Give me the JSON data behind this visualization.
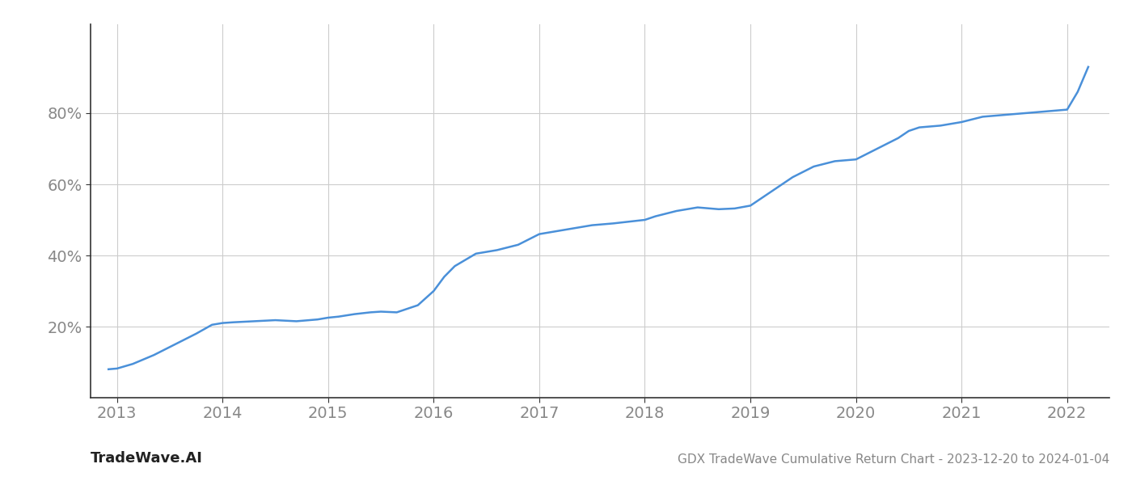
{
  "x_values": [
    2012.92,
    2013.0,
    2013.15,
    2013.35,
    2013.55,
    2013.75,
    2013.9,
    2014.0,
    2014.1,
    2014.3,
    2014.5,
    2014.7,
    2014.9,
    2015.0,
    2015.1,
    2015.25,
    2015.4,
    2015.5,
    2015.65,
    2015.85,
    2016.0,
    2016.1,
    2016.2,
    2016.4,
    2016.6,
    2016.8,
    2017.0,
    2017.2,
    2017.5,
    2017.7,
    2017.85,
    2018.0,
    2018.1,
    2018.3,
    2018.5,
    2018.7,
    2018.85,
    2019.0,
    2019.2,
    2019.4,
    2019.6,
    2019.8,
    2020.0,
    2020.2,
    2020.4,
    2020.5,
    2020.6,
    2020.8,
    2021.0,
    2021.2,
    2021.4,
    2021.6,
    2021.8,
    2022.0,
    2022.1,
    2022.2
  ],
  "y_values": [
    8.0,
    8.2,
    9.5,
    12.0,
    15.0,
    18.0,
    20.5,
    21.0,
    21.2,
    21.5,
    21.8,
    21.5,
    22.0,
    22.5,
    22.8,
    23.5,
    24.0,
    24.2,
    24.0,
    26.0,
    30.0,
    34.0,
    37.0,
    40.5,
    41.5,
    43.0,
    46.0,
    47.0,
    48.5,
    49.0,
    49.5,
    50.0,
    51.0,
    52.5,
    53.5,
    53.0,
    53.2,
    54.0,
    58.0,
    62.0,
    65.0,
    66.5,
    67.0,
    70.0,
    73.0,
    75.0,
    76.0,
    76.5,
    77.5,
    79.0,
    79.5,
    80.0,
    80.5,
    81.0,
    86.0,
    93.0
  ],
  "line_color": "#4a90d9",
  "line_width": 1.8,
  "title": "GDX TradeWave Cumulative Return Chart - 2023-12-20 to 2024-01-04",
  "watermark": "TradeWave.AI",
  "xlim": [
    2012.75,
    2022.4
  ],
  "ylim": [
    0,
    105
  ],
  "yticks": [
    20,
    40,
    60,
    80
  ],
  "xticks": [
    2013,
    2014,
    2015,
    2016,
    2017,
    2018,
    2019,
    2020,
    2021,
    2022
  ],
  "grid_color": "#cccccc",
  "bg_color": "#ffffff",
  "title_fontsize": 11,
  "watermark_fontsize": 13,
  "tick_fontsize": 14,
  "tick_color": "#888888",
  "title_color": "#888888",
  "watermark_color": "#222222"
}
